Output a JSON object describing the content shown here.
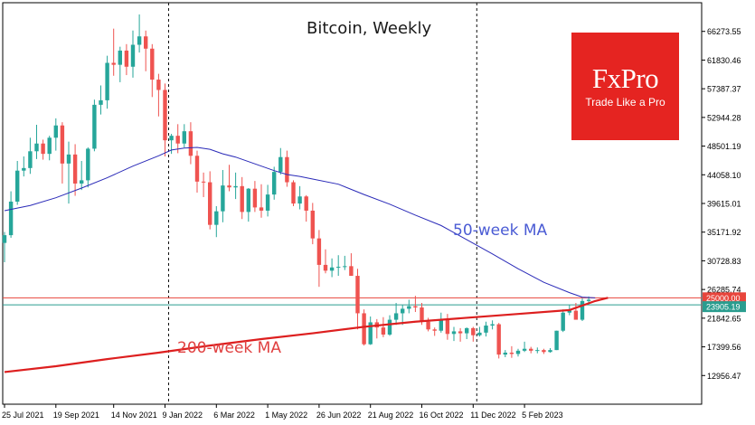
{
  "chart_data": {
    "type": "candlestick",
    "title": "Bitcoin, Weekly",
    "y_ticks": [
      "66273.55",
      "61830.46",
      "57387.37",
      "52944.28",
      "48501.19",
      "44058.10",
      "39615.01",
      "35171.92",
      "30728.83",
      "26285.74",
      "21842.65",
      "17399.56",
      "12956.47"
    ],
    "x_ticks": [
      "25 Jul 2021",
      "19 Sep 2021",
      "14 Nov 2021",
      "9 Jan 2022",
      "6 Mar 2022",
      "1 May 2022",
      "26 Jun 2022",
      "21 Aug 2022",
      "16 Oct 2022",
      "11 Dec 2022",
      "5 Feb 2023"
    ],
    "ylim": [
      8513.38,
      70716.64
    ],
    "price_markers": [
      {
        "label": "25000.00",
        "value": 25000.0,
        "color": "#e8453c"
      },
      {
        "label": "23905.19",
        "value": 23905.19,
        "color": "#2a9d8f"
      }
    ],
    "vertical_markers": [
      "9 Jan 2022",
      "11 Dec 2022"
    ],
    "series": [
      {
        "name": "50-week MA",
        "color": "#2a2ab8",
        "values": [
          [
            0,
            38500
          ],
          [
            4,
            39300
          ],
          [
            8,
            40500
          ],
          [
            12,
            42000
          ],
          [
            16,
            43600
          ],
          [
            20,
            45400
          ],
          [
            24,
            47000
          ],
          [
            26,
            47900
          ],
          [
            28,
            48200
          ],
          [
            30,
            48300
          ],
          [
            32,
            48000
          ],
          [
            34,
            47300
          ],
          [
            36,
            46800
          ],
          [
            38,
            46100
          ],
          [
            40,
            45400
          ],
          [
            42,
            44700
          ],
          [
            44,
            44100
          ],
          [
            46,
            43800
          ],
          [
            48,
            43400
          ],
          [
            52,
            42600
          ],
          [
            56,
            41000
          ],
          [
            60,
            39500
          ],
          [
            64,
            37800
          ],
          [
            68,
            36200
          ],
          [
            72,
            34000
          ],
          [
            76,
            31800
          ],
          [
            80,
            29500
          ],
          [
            84,
            27400
          ],
          [
            88,
            25800
          ],
          [
            90,
            25100
          ],
          [
            92,
            25000
          ]
        ]
      },
      {
        "name": "200-week MA",
        "color": "#dd1f1f",
        "values": [
          [
            0,
            13500
          ],
          [
            8,
            14400
          ],
          [
            16,
            15500
          ],
          [
            24,
            16500
          ],
          [
            32,
            17600
          ],
          [
            40,
            18600
          ],
          [
            48,
            19500
          ],
          [
            56,
            20500
          ],
          [
            64,
            21300
          ],
          [
            72,
            21900
          ],
          [
            80,
            22500
          ],
          [
            88,
            23100
          ],
          [
            92,
            24500
          ],
          [
            94,
            25000
          ]
        ]
      }
    ],
    "candles": [
      [
        33500,
        35200,
        30500,
        34700
      ],
      [
        34700,
        41500,
        34300,
        39900
      ],
      [
        39900,
        46200,
        39400,
        44700
      ],
      [
        44700,
        46900,
        43800,
        45100
      ],
      [
        45100,
        49800,
        44200,
        47700
      ],
      [
        47700,
        51800,
        46500,
        48900
      ],
      [
        48900,
        49500,
        46400,
        47300
      ],
      [
        47300,
        50100,
        46300,
        49800
      ],
      [
        49800,
        52800,
        47800,
        51700
      ],
      [
        51700,
        52200,
        42700,
        45800
      ],
      [
        45800,
        49200,
        39600,
        47200
      ],
      [
        47200,
        48800,
        40800,
        42700
      ],
      [
        42700,
        46200,
        41700,
        43200
      ],
      [
        43200,
        48300,
        42100,
        48100
      ],
      [
        48100,
        55700,
        47700,
        54900
      ],
      [
        54900,
        57900,
        53400,
        55600
      ],
      [
        55600,
        62500,
        54300,
        61400
      ],
      [
        61400,
        66700,
        59400,
        61100
      ],
      [
        61100,
        63900,
        58400,
        63300
      ],
      [
        63300,
        64300,
        59500,
        60800
      ],
      [
        60800,
        66400,
        59100,
        64200
      ],
      [
        64200,
        68900,
        63000,
        65500
      ],
      [
        65500,
        66400,
        60100,
        63600
      ],
      [
        63600,
        64300,
        56100,
        58800
      ],
      [
        58800,
        59700,
        53100,
        57200
      ],
      [
        57200,
        58200,
        46900,
        49400
      ],
      [
        49400,
        50400,
        47300,
        50100
      ],
      [
        50100,
        51900,
        47400,
        48900
      ],
      [
        48900,
        51900,
        48300,
        50800
      ],
      [
        50800,
        52200,
        45700,
        47000
      ],
      [
        47000,
        47800,
        41300,
        43000
      ],
      [
        43000,
        44400,
        40600,
        42900
      ],
      [
        42900,
        44600,
        35600,
        36300
      ],
      [
        36300,
        39200,
        34400,
        38400
      ],
      [
        38400,
        44800,
        36700,
        42400
      ],
      [
        42400,
        45600,
        41500,
        42100
      ],
      [
        42100,
        44400,
        40300,
        42300
      ],
      [
        42300,
        43700,
        37200,
        38300
      ],
      [
        38300,
        42000,
        36800,
        41900
      ],
      [
        41900,
        43100,
        38300,
        39000
      ],
      [
        39000,
        42600,
        37400,
        38500
      ],
      [
        38500,
        42500,
        37600,
        41000
      ],
      [
        41000,
        45300,
        40200,
        44500
      ],
      [
        44500,
        48200,
        44100,
        46800
      ],
      [
        46800,
        47800,
        42200,
        42900
      ],
      [
        42900,
        43200,
        39200,
        39600
      ],
      [
        39600,
        42300,
        38700,
        40700
      ],
      [
        40700,
        40900,
        36800,
        38500
      ],
      [
        38500,
        39700,
        33300,
        34200
      ],
      [
        34200,
        35500,
        26700,
        30100
      ],
      [
        30100,
        32500,
        28800,
        29200
      ],
      [
        29200,
        31100,
        28200,
        29700
      ],
      [
        29700,
        31600,
        28400,
        29800
      ],
      [
        29800,
        31500,
        29300,
        29900
      ],
      [
        29900,
        31900,
        28900,
        28400
      ],
      [
        28400,
        29500,
        20100,
        22600
      ],
      [
        22600,
        23200,
        17600,
        17800
      ],
      [
        17800,
        22100,
        17700,
        21200
      ],
      [
        21200,
        21700,
        18700,
        20400
      ],
      [
        20400,
        22000,
        18900,
        19300
      ],
      [
        19300,
        22300,
        19100,
        21600
      ],
      [
        21600,
        24200,
        20800,
        22600
      ],
      [
        22600,
        23900,
        20800,
        23300
      ],
      [
        23300,
        24700,
        22600,
        23700
      ],
      [
        23700,
        25300,
        22800,
        23500
      ],
      [
        23500,
        24200,
        20800,
        21300
      ],
      [
        21300,
        21900,
        19800,
        20100
      ],
      [
        20100,
        20400,
        19100,
        19900
      ],
      [
        19900,
        22700,
        19600,
        21700
      ],
      [
        21700,
        22500,
        18500,
        19400
      ],
      [
        19400,
        20500,
        18300,
        19800
      ],
      [
        19800,
        20300,
        18200,
        19500
      ],
      [
        19500,
        20400,
        18600,
        20300
      ],
      [
        20300,
        20500,
        18200,
        19200
      ],
      [
        19200,
        20500,
        19000,
        19600
      ],
      [
        19600,
        21300,
        19000,
        20700
      ],
      [
        20700,
        21500,
        20100,
        20900
      ],
      [
        20900,
        21100,
        15600,
        16200
      ],
      [
        16200,
        16900,
        15800,
        16500
      ],
      [
        16500,
        17500,
        15700,
        16300
      ],
      [
        16300,
        17100,
        15900,
        16800
      ],
      [
        16800,
        18200,
        16600,
        17100
      ],
      [
        17100,
        17400,
        16400,
        16800
      ],
      [
        16800,
        17300,
        16400,
        16900
      ],
      [
        16900,
        17100,
        16300,
        16600
      ],
      [
        16600,
        17200,
        16500,
        16900
      ],
      [
        16900,
        19900,
        16900,
        19900
      ],
      [
        19900,
        23200,
        19700,
        22700
      ],
      [
        22700,
        23900,
        22300,
        23000
      ],
      [
        23000,
        24200,
        21800,
        21600
      ],
      [
        21600,
        24900,
        21400,
        24500
      ],
      [
        24500,
        25200,
        23900,
        24700
      ]
    ]
  },
  "title": "Bitcoin, Weekly",
  "ma50_label": "50-week MA",
  "ma200_label": "200-week MA",
  "logo": {
    "name": "FxPro",
    "tagline": "Trade Like a Pro"
  }
}
